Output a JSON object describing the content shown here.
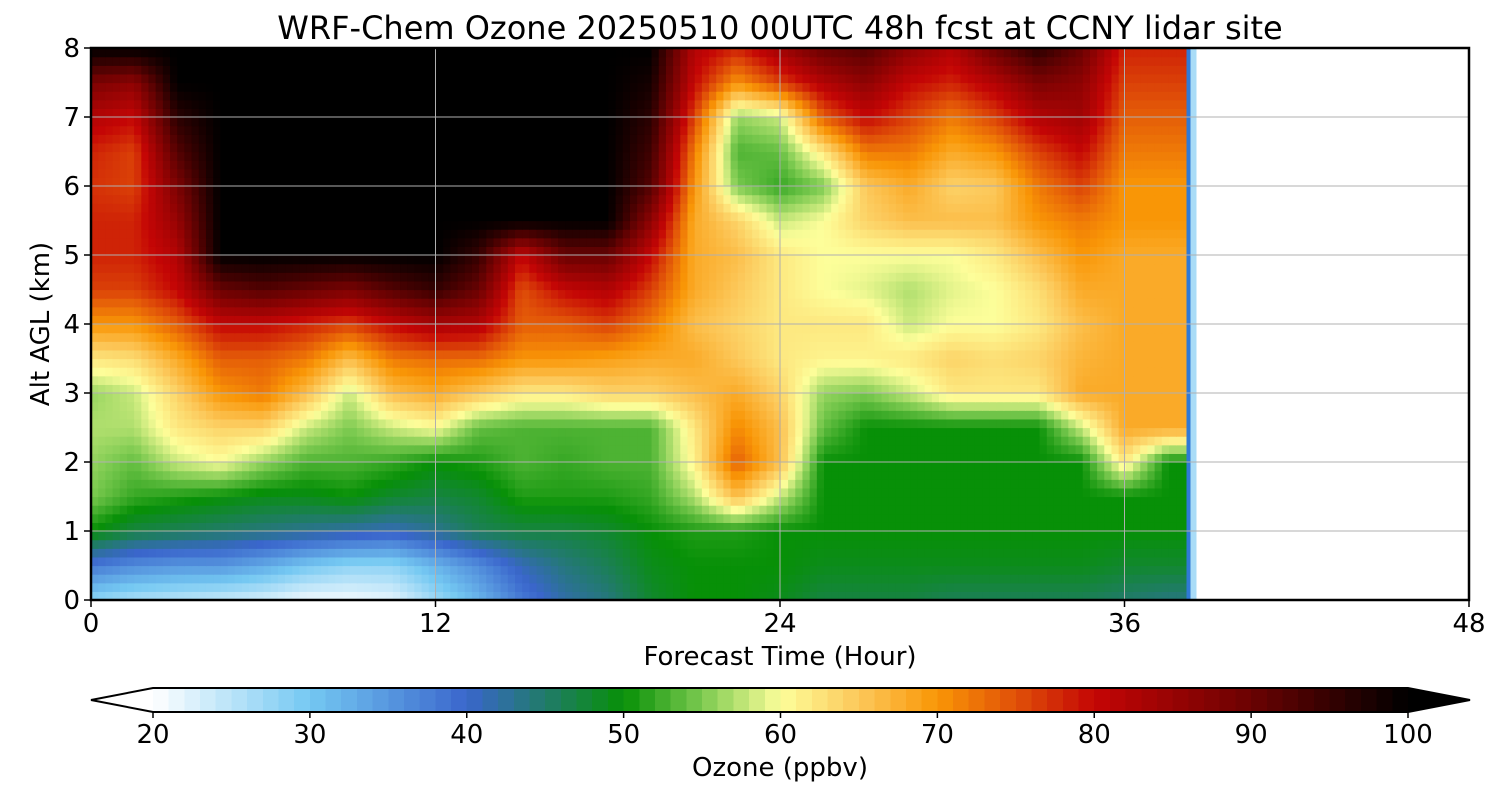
{
  "chart_data": {
    "type": "heatmap",
    "title": "WRF-Chem Ozone  20250510 00UTC 48h fcst at CCNY lidar site",
    "xlabel": "Forecast Time (Hour)",
    "ylabel": "Alt AGL (km)",
    "xlim": [
      0,
      48
    ],
    "ylim": [
      0,
      8
    ],
    "x_ticks": [
      0,
      12,
      24,
      36,
      48
    ],
    "y_ticks": [
      0,
      1,
      2,
      3,
      4,
      5,
      6,
      7,
      8
    ],
    "grid": true,
    "data_end_hour": 38.3,
    "x": [
      0,
      1.5,
      3,
      4.5,
      6,
      7.5,
      9,
      10.5,
      12,
      13.5,
      15,
      16.5,
      18,
      19.5,
      21,
      22.5,
      24,
      25.5,
      27,
      28.5,
      30,
      31.5,
      33,
      34.5,
      36,
      37.5
    ],
    "y": [
      0,
      0.5,
      1,
      1.5,
      2,
      2.5,
      3,
      3.5,
      4,
      4.5,
      5,
      5.5,
      6,
      6.5,
      7,
      7.5,
      8
    ],
    "colorbar": {
      "label": "Ozone  (ppbv)",
      "min": 20,
      "max": 100,
      "ticks": [
        20,
        30,
        40,
        50,
        60,
        70,
        80,
        90,
        100
      ],
      "extend": "both"
    },
    "colormap_stops": [
      {
        "value": 20,
        "color": "#ffffff"
      },
      {
        "value": 30,
        "color": "#74c8f2"
      },
      {
        "value": 40,
        "color": "#3a66cc"
      },
      {
        "value": 50,
        "color": "#079007"
      },
      {
        "value": 55,
        "color": "#7cca50"
      },
      {
        "value": 60,
        "color": "#fdfe9a"
      },
      {
        "value": 65,
        "color": "#fcc85a"
      },
      {
        "value": 70,
        "color": "#f99606"
      },
      {
        "value": 75,
        "color": "#e05008"
      },
      {
        "value": 80,
        "color": "#c40505"
      },
      {
        "value": 90,
        "color": "#6a0202"
      },
      {
        "value": 100,
        "color": "#000000"
      }
    ],
    "values": [
      [
        28,
        26,
        25,
        24,
        23,
        21,
        21,
        22,
        27,
        32,
        38,
        42,
        44,
        48,
        50,
        50,
        49,
        47,
        47,
        47,
        46,
        46,
        46,
        46,
        45,
        44
      ],
      [
        38,
        36,
        35,
        35,
        33,
        30,
        28,
        28,
        32,
        36,
        41,
        44,
        46,
        49,
        50,
        50,
        50,
        49,
        49,
        49,
        49,
        49,
        49,
        49,
        48,
        48
      ],
      [
        50,
        47,
        46,
        45,
        44,
        43,
        42,
        41,
        43,
        46,
        47,
        47,
        48,
        50,
        51,
        51,
        50,
        50,
        50,
        50,
        50,
        50,
        50,
        50,
        50,
        50
      ],
      [
        55,
        52,
        51,
        50,
        49,
        49,
        50,
        48,
        47,
        48,
        51,
        51,
        51,
        52,
        57,
        66,
        58,
        50,
        50,
        50,
        50,
        50,
        50,
        50,
        50,
        50
      ],
      [
        56,
        54,
        58,
        60,
        56,
        53,
        53,
        52,
        50,
        51,
        53,
        52,
        53,
        53,
        61,
        74,
        66,
        50,
        50,
        50,
        50,
        50,
        50,
        50,
        62,
        50
      ],
      [
        57,
        57,
        62,
        64,
        64,
        58,
        55,
        58,
        60,
        54,
        53,
        53,
        53,
        53,
        62,
        71,
        66,
        54,
        50,
        50,
        50,
        50,
        50,
        58,
        68,
        68
      ],
      [
        56,
        58,
        64,
        70,
        72,
        66,
        58,
        66,
        68,
        65,
        62,
        62,
        64,
        64,
        66,
        68,
        64,
        56,
        55,
        58,
        62,
        62,
        62,
        68,
        68,
        68
      ],
      [
        62,
        63,
        68,
        74,
        74,
        72,
        66,
        72,
        73,
        73,
        70,
        70,
        69,
        68,
        68,
        65,
        62,
        61,
        61,
        62,
        64,
        63,
        64,
        67,
        68,
        68
      ],
      [
        70,
        70,
        74,
        80,
        80,
        78,
        76,
        80,
        83,
        82,
        74,
        74,
        76,
        72,
        66,
        64,
        62,
        62,
        62,
        58,
        60,
        60,
        62,
        66,
        68,
        68
      ],
      [
        76,
        76,
        80,
        90,
        92,
        90,
        88,
        92,
        95,
        90,
        75,
        80,
        82,
        76,
        68,
        65,
        62,
        60,
        59,
        57,
        59,
        60,
        63,
        68,
        68,
        68
      ],
      [
        78,
        78,
        82,
        100,
        100,
        100,
        100,
        100,
        100,
        95,
        80,
        90,
        90,
        80,
        68,
        66,
        62,
        60,
        60,
        60,
        60,
        62,
        66,
        70,
        68,
        68
      ],
      [
        78,
        78,
        85,
        100,
        100,
        100,
        100,
        100,
        100,
        100,
        100,
        100,
        100,
        86,
        68,
        64,
        58,
        60,
        64,
        66,
        66,
        66,
        70,
        72,
        70,
        70
      ],
      [
        77,
        76,
        88,
        100,
        100,
        100,
        100,
        100,
        100,
        100,
        100,
        100,
        100,
        92,
        70,
        55,
        52,
        55,
        65,
        68,
        64,
        65,
        72,
        76,
        70,
        70
      ],
      [
        78,
        76,
        92,
        100,
        100,
        100,
        100,
        100,
        100,
        100,
        100,
        100,
        100,
        94,
        72,
        53,
        54,
        62,
        72,
        72,
        68,
        70,
        76,
        80,
        72,
        72
      ],
      [
        82,
        80,
        96,
        100,
        100,
        100,
        100,
        100,
        100,
        100,
        100,
        100,
        100,
        96,
        76,
        56,
        58,
        74,
        80,
        76,
        72,
        76,
        82,
        84,
        74,
        74
      ],
      [
        88,
        86,
        100,
        100,
        100,
        100,
        100,
        100,
        100,
        100,
        100,
        100,
        100,
        98,
        80,
        70,
        76,
        82,
        86,
        80,
        78,
        82,
        88,
        86,
        76,
        76
      ],
      [
        100,
        100,
        100,
        100,
        100,
        100,
        100,
        100,
        100,
        100,
        100,
        100,
        100,
        100,
        82,
        78,
        84,
        90,
        92,
        86,
        82,
        90,
        96,
        90,
        78,
        78
      ]
    ]
  }
}
